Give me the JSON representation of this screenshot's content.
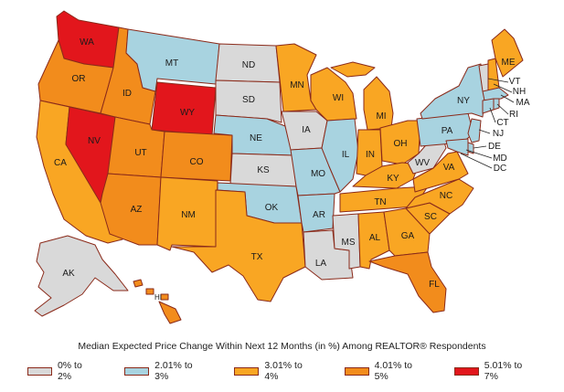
{
  "caption": "Median Expected Price Change Within Next 12 Months (in %) Among REALTOR® Respondents",
  "colors": {
    "c1": "#d9d9d9",
    "c2": "#a8d3e0",
    "c3": "#f9a623",
    "c4": "#f28c1c",
    "c5": "#e2161c"
  },
  "legend": [
    {
      "label": "0% to 2%",
      "color": "#d9d9d9"
    },
    {
      "label": "2.01% to 3%",
      "color": "#a8d3e0"
    },
    {
      "label": "3.01% to 4%",
      "color": "#f9a623"
    },
    {
      "label": "4.01% to 5%",
      "color": "#f28c1c"
    },
    {
      "label": "5.01% to 7%",
      "color": "#e2161c"
    }
  ],
  "states": {
    "WA": {
      "label": "WA",
      "bin": "c5"
    },
    "OR": {
      "label": "OR",
      "bin": "c4"
    },
    "CA": {
      "label": "CA",
      "bin": "c3"
    },
    "NV": {
      "label": "NV",
      "bin": "c5"
    },
    "ID": {
      "label": "ID",
      "bin": "c4"
    },
    "MT": {
      "label": "MT",
      "bin": "c2"
    },
    "WY": {
      "label": "WY",
      "bin": "c5"
    },
    "UT": {
      "label": "UT",
      "bin": "c4"
    },
    "AZ": {
      "label": "AZ",
      "bin": "c4"
    },
    "CO": {
      "label": "CO",
      "bin": "c4"
    },
    "NM": {
      "label": "NM",
      "bin": "c3"
    },
    "ND": {
      "label": "ND",
      "bin": "c1"
    },
    "SD": {
      "label": "SD",
      "bin": "c1"
    },
    "NE": {
      "label": "NE",
      "bin": "c2"
    },
    "KS": {
      "label": "KS",
      "bin": "c1"
    },
    "OK": {
      "label": "OK",
      "bin": "c2"
    },
    "TX": {
      "label": "TX",
      "bin": "c3"
    },
    "MN": {
      "label": "MN",
      "bin": "c3"
    },
    "IA": {
      "label": "IA",
      "bin": "c1"
    },
    "MO": {
      "label": "MO",
      "bin": "c2"
    },
    "AR": {
      "label": "AR",
      "bin": "c2"
    },
    "LA": {
      "label": "LA",
      "bin": "c1"
    },
    "WI": {
      "label": "WI",
      "bin": "c3"
    },
    "IL": {
      "label": "IL",
      "bin": "c2"
    },
    "MS": {
      "label": "MS",
      "bin": "c1"
    },
    "MI": {
      "label": "MI",
      "bin": "c3"
    },
    "IN": {
      "label": "IN",
      "bin": "c3"
    },
    "OH": {
      "label": "OH",
      "bin": "c3"
    },
    "KY": {
      "label": "KY",
      "bin": "c3"
    },
    "TN": {
      "label": "TN",
      "bin": "c3"
    },
    "AL": {
      "label": "AL",
      "bin": "c3"
    },
    "GA": {
      "label": "GA",
      "bin": "c3"
    },
    "FL": {
      "label": "FL",
      "bin": "c4"
    },
    "SC": {
      "label": "SC",
      "bin": "c3"
    },
    "NC": {
      "label": "NC",
      "bin": "c3"
    },
    "VA": {
      "label": "VA",
      "bin": "c3"
    },
    "WV": {
      "label": "WV",
      "bin": "c1"
    },
    "PA": {
      "label": "PA",
      "bin": "c2"
    },
    "NY": {
      "label": "NY",
      "bin": "c2"
    },
    "ME": {
      "label": "ME",
      "bin": "c3"
    },
    "VT": {
      "label": "VT",
      "bin": "c1"
    },
    "NH": {
      "label": "NH",
      "bin": "c3"
    },
    "MA": {
      "label": "MA",
      "bin": "c2"
    },
    "RI": {
      "label": "RI",
      "bin": "c2"
    },
    "CT": {
      "label": "CT",
      "bin": "c2"
    },
    "NJ": {
      "label": "NJ",
      "bin": "c2"
    },
    "DE": {
      "label": "DE",
      "bin": "c2"
    },
    "MD": {
      "label": "MD",
      "bin": "c2"
    },
    "DC": {
      "label": "DC",
      "bin": "c2"
    },
    "AK": {
      "label": "AK",
      "bin": "c1"
    },
    "HI": {
      "label": "HI",
      "bin": "c4"
    }
  }
}
